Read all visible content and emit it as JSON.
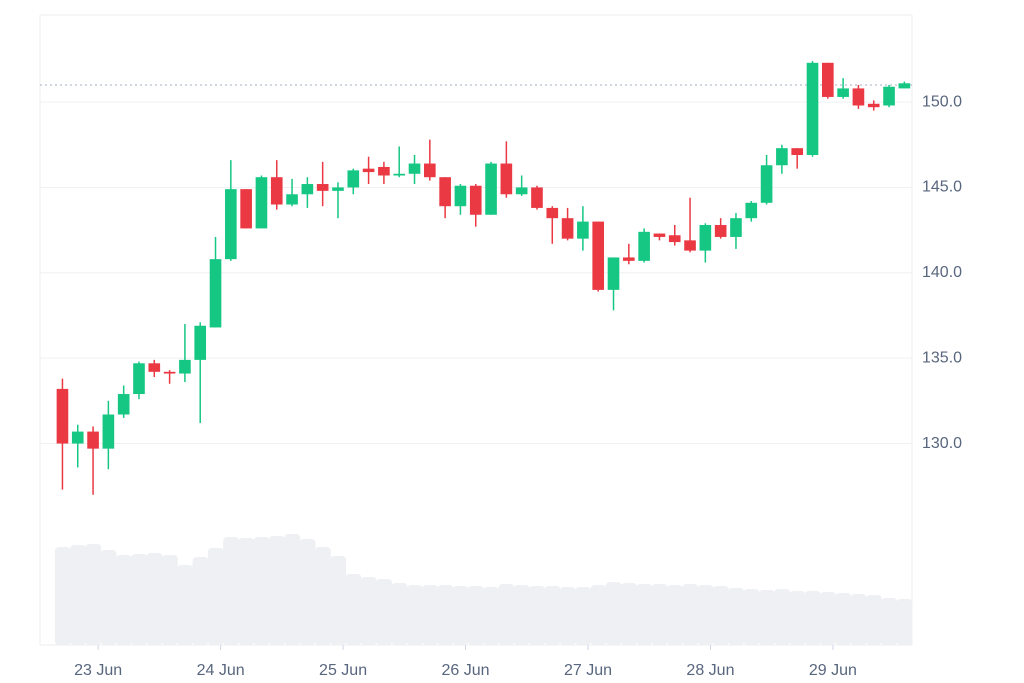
{
  "chart_data": {
    "type": "candlestick",
    "x": [
      -7,
      -4,
      -1,
      2,
      5,
      8,
      11,
      14,
      17,
      20,
      23,
      26,
      29,
      32,
      35,
      38,
      41,
      44,
      47,
      50,
      53,
      56,
      59,
      62,
      65,
      68,
      71,
      74,
      77,
      80,
      83,
      86,
      89,
      92,
      95,
      98,
      101,
      104,
      107,
      110,
      113,
      116,
      119,
      122,
      125,
      128,
      131,
      134,
      137,
      140,
      143,
      146,
      149,
      152,
      155,
      158
    ],
    "open": [
      133.2,
      130.0,
      130.7,
      129.7,
      131.7,
      132.9,
      134.7,
      134.2,
      134.1,
      134.9,
      136.8,
      140.8,
      144.9,
      142.6,
      145.6,
      144.0,
      144.6,
      145.2,
      144.8,
      145.0,
      146.1,
      146.2,
      145.7,
      145.8,
      146.4,
      145.6,
      143.9,
      145.1,
      143.4,
      146.4,
      144.6,
      145.0,
      143.8,
      143.2,
      142.0,
      143.0,
      139.0,
      140.9,
      140.7,
      142.3,
      142.2,
      141.9,
      141.3,
      142.8,
      142.1,
      143.2,
      144.1,
      146.3,
      147.3,
      146.9,
      152.3,
      150.3,
      150.8,
      149.9,
      149.8,
      150.8
    ],
    "high": [
      133.8,
      131.1,
      131.0,
      132.5,
      133.4,
      134.8,
      134.9,
      134.3,
      137.0,
      137.1,
      142.1,
      146.6,
      144.9,
      145.7,
      146.6,
      145.5,
      145.6,
      146.5,
      145.3,
      146.1,
      146.8,
      146.5,
      147.4,
      146.9,
      147.8,
      145.6,
      145.2,
      145.2,
      146.5,
      147.7,
      145.7,
      145.1,
      143.9,
      143.8,
      143.9,
      143.0,
      140.9,
      141.7,
      142.6,
      142.3,
      142.8,
      144.4,
      142.9,
      143.2,
      143.5,
      144.2,
      146.9,
      147.5,
      147.3,
      152.4,
      152.3,
      151.4,
      151.0,
      150.1,
      151.0,
      151.2
    ],
    "low": [
      127.3,
      128.6,
      127.0,
      128.5,
      131.5,
      132.6,
      133.9,
      133.5,
      133.6,
      131.2,
      136.8,
      140.7,
      142.6,
      142.6,
      143.7,
      143.9,
      143.8,
      143.9,
      143.2,
      144.6,
      145.2,
      145.2,
      145.6,
      145.2,
      145.4,
      143.2,
      143.4,
      142.7,
      143.4,
      144.4,
      144.5,
      143.7,
      141.7,
      141.9,
      141.3,
      138.9,
      137.8,
      140.5,
      140.6,
      141.9,
      141.6,
      141.2,
      140.6,
      142.0,
      141.4,
      143.0,
      144.0,
      145.8,
      146.1,
      146.8,
      150.2,
      150.2,
      149.6,
      149.5,
      149.7,
      150.8
    ],
    "close": [
      130.0,
      130.7,
      129.7,
      131.7,
      132.9,
      134.7,
      134.2,
      134.1,
      134.9,
      136.9,
      140.8,
      144.9,
      142.6,
      145.6,
      144.0,
      144.6,
      145.2,
      144.8,
      145.0,
      146.0,
      145.9,
      145.7,
      145.8,
      146.4,
      145.6,
      143.9,
      145.1,
      143.4,
      146.4,
      144.6,
      145.0,
      143.8,
      143.2,
      142.0,
      143.0,
      139.0,
      140.9,
      140.7,
      142.4,
      142.1,
      141.8,
      141.3,
      142.8,
      142.1,
      143.2,
      144.1,
      146.3,
      147.3,
      146.9,
      152.3,
      150.3,
      150.8,
      149.8,
      149.7,
      150.9,
      151.1
    ],
    "volume": [
      98,
      100,
      101,
      95,
      90,
      91,
      92,
      90,
      80,
      88,
      97,
      108,
      107,
      108,
      109,
      111,
      106,
      98,
      89,
      71,
      68,
      66,
      62,
      60,
      60,
      60,
      59,
      59,
      58,
      61,
      60,
      59,
      59,
      58,
      58,
      60,
      63,
      62,
      61,
      61,
      60,
      61,
      60,
      59,
      57,
      56,
      55,
      56,
      54,
      54,
      53,
      52,
      51,
      50,
      47,
      46
    ],
    "up_color": "#16c784",
    "down_color": "#ea3943",
    "volume_color": "#eef0f4",
    "xlim": [
      -11.4,
      159.5
    ],
    "xticks": [
      {
        "value": 0,
        "label": "23 Jun"
      },
      {
        "value": 24,
        "label": "24 Jun"
      },
      {
        "value": 48,
        "label": "25 Jun"
      },
      {
        "value": 72,
        "label": "26 Jun"
      },
      {
        "value": 96,
        "label": "27 Jun"
      },
      {
        "value": 120,
        "label": "28 Jun"
      },
      {
        "value": 144,
        "label": "29 Jun"
      }
    ],
    "ylim": [
      118.2,
      155.1
    ],
    "yticks": [
      {
        "value": 130,
        "label": "130.0"
      },
      {
        "value": 135,
        "label": "135.0"
      },
      {
        "value": 140,
        "label": "140.0"
      },
      {
        "value": 145,
        "label": "145.0"
      },
      {
        "value": 150,
        "label": "150.0"
      }
    ],
    "volume_ylim": [
      0,
      630
    ],
    "price_line": 151.0,
    "grid": true
  }
}
